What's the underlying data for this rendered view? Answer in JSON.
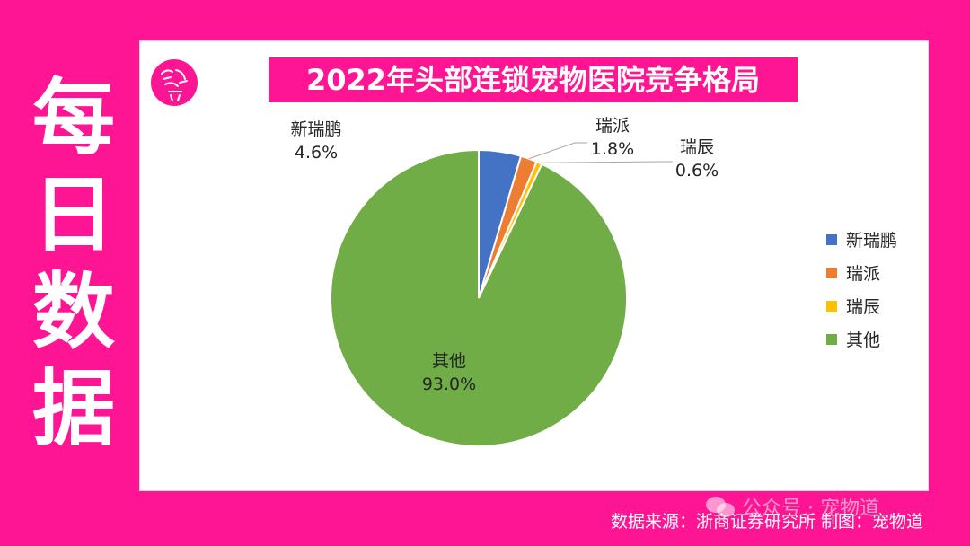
{
  "side_title": [
    "每",
    "日",
    "数",
    "据"
  ],
  "logo": {
    "name": "宠物道-logo",
    "bg_color": "#fe1593"
  },
  "source_text": "数据来源：浙商证券研究所   制图：宠物道",
  "watermark": {
    "icon": "wechat-icon",
    "text": "公众号 · 宠物道"
  },
  "chart_data": {
    "type": "pie",
    "title": "2022年头部连锁宠物医院竞争格局",
    "slices": [
      {
        "label": "新瑞鹏",
        "value": 4.6,
        "value_label": "4.6%",
        "color": "#4472c4"
      },
      {
        "label": "瑞派",
        "value": 1.8,
        "value_label": "1.8%",
        "color": "#ed7d31"
      },
      {
        "label": "瑞辰",
        "value": 0.6,
        "value_label": "0.6%",
        "color": "#ffc000"
      },
      {
        "label": "其他",
        "value": 93.0,
        "value_label": "93.0%",
        "color": "#70ad47"
      }
    ],
    "legend": {
      "position": "right",
      "entries": [
        "新瑞鹏",
        "瑞派",
        "瑞辰",
        "其他"
      ]
    },
    "start_angle": "top",
    "direction": "clockwise"
  }
}
